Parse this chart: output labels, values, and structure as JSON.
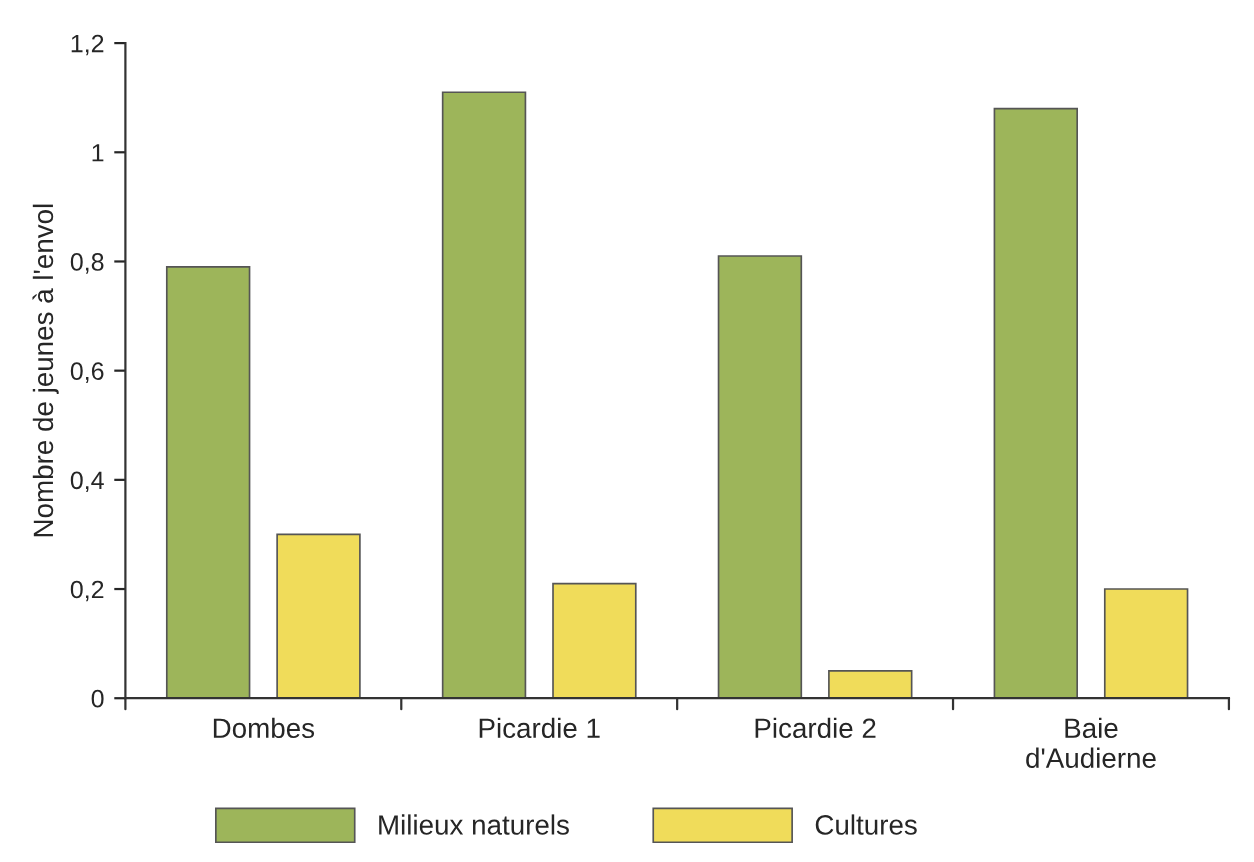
{
  "chart_data": {
    "type": "bar",
    "ylabel": "Nombre de jeunes à l'envol",
    "categories": [
      "Dombes",
      "Picardie 1",
      "Picardie 2",
      "Baie\nd'Audierne"
    ],
    "series": [
      {
        "name": "Milieux naturels",
        "color": "#9db55a",
        "values": [
          0.79,
          1.11,
          0.81,
          1.08
        ]
      },
      {
        "name": "Cultures",
        "color": "#f0dc5a",
        "values": [
          0.3,
          0.21,
          0.05,
          0.2
        ]
      }
    ],
    "ylim": [
      0,
      1.2
    ],
    "yticks": [
      0,
      {
        "value": 0.2,
        "label": "0,2"
      },
      {
        "value": 0.4,
        "label": "0,4"
      },
      {
        "value": 0.6,
        "label": "0,6"
      },
      {
        "value": 0.8,
        "label": "0,8"
      },
      1,
      {
        "value": 1.2,
        "label": "1,2"
      }
    ],
    "grid": false,
    "legend": "bottom"
  }
}
